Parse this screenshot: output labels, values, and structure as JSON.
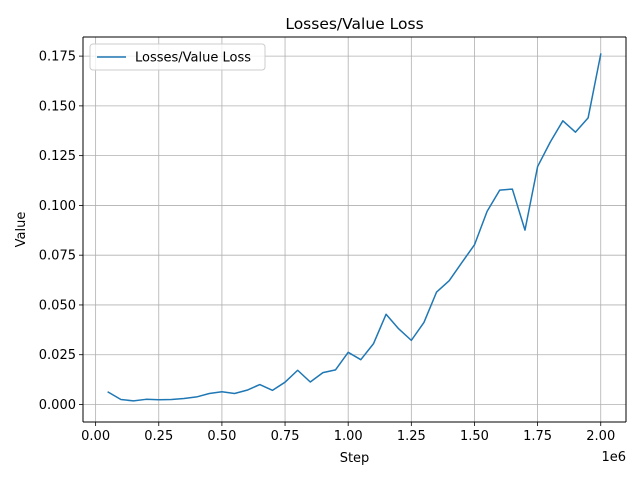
{
  "chart_data": {
    "type": "line",
    "title": "Losses/Value Loss",
    "xlabel": "Step",
    "ylabel": "Value",
    "x_offset_label": "1e6",
    "xlim": [
      -0.05,
      2.1
    ],
    "ylim": [
      -0.0088,
      0.1846
    ],
    "xticks": [
      0.0,
      0.25,
      0.5,
      0.75,
      1.0,
      1.25,
      1.5,
      1.75,
      2.0
    ],
    "xtick_labels": [
      "0.00",
      "0.25",
      "0.50",
      "0.75",
      "1.00",
      "1.25",
      "1.50",
      "1.75",
      "2.00"
    ],
    "yticks": [
      0.0,
      0.025,
      0.05,
      0.075,
      0.1,
      0.125,
      0.15,
      0.175
    ],
    "ytick_labels": [
      "0.000",
      "0.025",
      "0.050",
      "0.075",
      "0.100",
      "0.125",
      "0.150",
      "0.175"
    ],
    "grid": true,
    "legend_position": "top-left",
    "colors": {
      "line": "#1f77b4",
      "grid": "#b0b0b0",
      "axis": "#000000"
    },
    "series": [
      {
        "name": "Losses/Value Loss",
        "x": [
          0.05,
          0.1,
          0.15,
          0.2,
          0.25,
          0.3,
          0.35,
          0.4,
          0.45,
          0.5,
          0.55,
          0.6,
          0.65,
          0.7,
          0.75,
          0.8,
          0.85,
          0.9,
          0.95,
          1.0,
          1.05,
          1.1,
          1.15,
          1.2,
          1.25,
          1.3,
          1.35,
          1.4,
          1.45,
          1.5,
          1.55,
          1.6,
          1.65,
          1.7,
          1.75,
          1.8,
          1.85,
          1.9,
          1.95,
          2.0
        ],
        "y": [
          0.0062,
          0.0025,
          0.0018,
          0.0026,
          0.0024,
          0.0025,
          0.003,
          0.0038,
          0.0055,
          0.0064,
          0.0055,
          0.0072,
          0.01,
          0.0071,
          0.0112,
          0.0172,
          0.0113,
          0.016,
          0.0174,
          0.0262,
          0.0225,
          0.0305,
          0.0453,
          0.038,
          0.0322,
          0.0412,
          0.0565,
          0.0622,
          0.0713,
          0.0802,
          0.097,
          0.1077,
          0.1082,
          0.0876,
          0.1195,
          0.1318,
          0.1425,
          0.1368,
          0.144,
          0.176
        ]
      }
    ]
  }
}
